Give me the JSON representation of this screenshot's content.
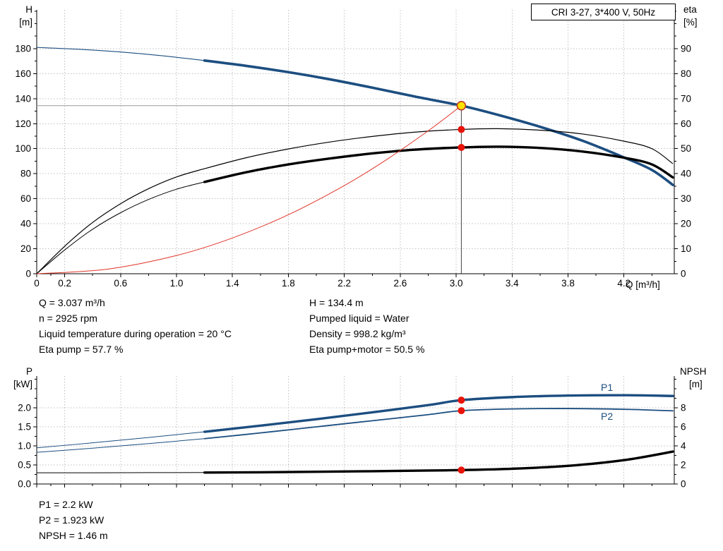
{
  "colors": {
    "curve_blue": "#1c4e80",
    "curve_black": "#000000",
    "system_red": "#e03528",
    "marker": "#e81309",
    "duty_fill": "#ffe200",
    "duty_stroke": "#c0392b",
    "grid": "#c0c0c0",
    "axis": "#000000",
    "crosshair_v": "#444444",
    "crosshair_h": "#999999"
  },
  "operating_point": {
    "left": [
      "Q = 3.037 m³/h",
      "n = 2925 rpm",
      "Liquid temperature during operation = 20 °C",
      "Eta pump = 57.7 %"
    ],
    "right": [
      "H = 134.4 m",
      "Pumped liquid = Water",
      "Density = 998.2 kg/m³",
      "Eta pump+motor = 50.5 %"
    ]
  },
  "power_info": [
    "P1 = 2.2 kW",
    "P2 = 1.923 kW",
    "NPSH = 1.46 m"
  ],
  "chart_data": [
    {
      "type": "line",
      "title": "CRI 3-27, 3*400 V, 50Hz",
      "xlabel": "Q [m³/h]",
      "ylabel_left_lines": [
        "H",
        "[m]"
      ],
      "ylabel_right_lines": [
        "eta",
        "[%]"
      ],
      "xlim": [
        0,
        4.56
      ],
      "ylim_left": [
        0,
        211
      ],
      "ylim_right": [
        0,
        105.5
      ],
      "grid": true,
      "legend_position": "none",
      "x_ticks": [
        0,
        0.2,
        0.6,
        1.0,
        1.4,
        1.8,
        2.2,
        2.6,
        3.0,
        3.4,
        3.8,
        4.2
      ],
      "x_tick_labels": [
        "0",
        "0.2",
        "0.6",
        "1.0",
        "1.4",
        "1.8",
        "2.2",
        "2.6",
        "3.0",
        "3.4",
        "3.8",
        "4.2"
      ],
      "y_ticks_left": [
        0,
        20,
        40,
        60,
        80,
        100,
        120,
        140,
        160,
        180
      ],
      "y_tick_labels_left": [
        "0",
        "20",
        "40",
        "60",
        "80",
        "100",
        "120",
        "140",
        "160",
        "180"
      ],
      "y_ticks_right": [
        0,
        10,
        20,
        30,
        40,
        50,
        60,
        70,
        80,
        90
      ],
      "y_tick_labels_right": [
        "0",
        "10",
        "20",
        "30",
        "40",
        "50",
        "60",
        "70",
        "80",
        "90"
      ],
      "series": [
        {
          "name": "head-curve",
          "label": "",
          "axis": "left",
          "color": "#1c4e80",
          "width": 1.1,
          "thick_from": 1.2,
          "thick_width": 3.6,
          "points": [
            [
              0,
              181
            ],
            [
              0.3,
              179.5
            ],
            [
              0.6,
              177.3
            ],
            [
              0.9,
              174.3
            ],
            [
              1.2,
              170.5
            ],
            [
              1.5,
              166.2
            ],
            [
              1.8,
              161.2
            ],
            [
              2.1,
              155.4
            ],
            [
              2.4,
              148.8
            ],
            [
              2.7,
              141.8
            ],
            [
              3.037,
              134.4
            ],
            [
              3.3,
              127
            ],
            [
              3.6,
              117.5
            ],
            [
              3.9,
              106.5
            ],
            [
              4.2,
              93
            ],
            [
              4.4,
              83
            ],
            [
              4.55,
              71
            ]
          ]
        },
        {
          "name": "eta-pump-curve",
          "label": "",
          "axis": "right",
          "color": "#000000",
          "width": 1.2,
          "points": [
            [
              0,
              0
            ],
            [
              0.2,
              11
            ],
            [
              0.4,
              20.5
            ],
            [
              0.6,
              28
            ],
            [
              0.8,
              34
            ],
            [
              1.0,
              38.7
            ],
            [
              1.2,
              42
            ],
            [
              1.5,
              46.4
            ],
            [
              1.8,
              49.9
            ],
            [
              2.1,
              52.7
            ],
            [
              2.4,
              54.9
            ],
            [
              2.7,
              56.6
            ],
            [
              3.037,
              57.7
            ],
            [
              3.3,
              58
            ],
            [
              3.6,
              57.4
            ],
            [
              3.9,
              55.9
            ],
            [
              4.2,
              53
            ],
            [
              4.4,
              50
            ],
            [
              4.55,
              44
            ]
          ]
        },
        {
          "name": "eta-pump-motor-curve",
          "label": "",
          "axis": "right",
          "color": "#000000",
          "width": 1,
          "thick_from": 1.2,
          "thick_width": 3.4,
          "points": [
            [
              0,
              0
            ],
            [
              0.2,
              9.5
            ],
            [
              0.4,
              17.8
            ],
            [
              0.6,
              24.4
            ],
            [
              0.8,
              29.7
            ],
            [
              1.0,
              33.8
            ],
            [
              1.2,
              36.7
            ],
            [
              1.5,
              40.6
            ],
            [
              1.8,
              43.7
            ],
            [
              2.1,
              46.1
            ],
            [
              2.4,
              48.1
            ],
            [
              2.7,
              49.6
            ],
            [
              3.037,
              50.5
            ],
            [
              3.3,
              50.8
            ],
            [
              3.6,
              50.3
            ],
            [
              3.9,
              48.9
            ],
            [
              4.2,
              46.4
            ],
            [
              4.4,
              43.7
            ],
            [
              4.55,
              38.5
            ]
          ]
        },
        {
          "name": "system-curve",
          "label": "",
          "axis": "left",
          "color": "#e03528",
          "width": 1,
          "points": [
            [
              0,
              0
            ],
            [
              0.5,
              3.6
            ],
            [
              1.0,
              14.6
            ],
            [
              1.4,
              28.6
            ],
            [
              1.8,
              47.2
            ],
            [
              2.2,
              70.5
            ],
            [
              2.5,
              91.1
            ],
            [
              2.8,
              114.3
            ],
            [
              3.037,
              134.4
            ]
          ]
        }
      ],
      "duty_point": {
        "q": 3.037,
        "h": 134.4
      },
      "markers": [
        {
          "name": "eta-pump-point",
          "q": 3.037,
          "value": 57.7,
          "axis": "right"
        },
        {
          "name": "eta-pump-motor-point",
          "q": 3.037,
          "value": 50.5,
          "axis": "right"
        }
      ]
    },
    {
      "type": "line",
      "title": "",
      "xlabel": "",
      "ylabel_left_lines": [
        "P",
        "[kW]"
      ],
      "ylabel_right_lines": [
        "NPSH",
        "[m]"
      ],
      "xlim": [
        0,
        4.56
      ],
      "ylim_left": [
        0,
        2.833
      ],
      "ylim_right": [
        0,
        11.33
      ],
      "grid": true,
      "legend_position": "right-inline",
      "x_ticks": [
        0,
        0.2,
        0.6,
        1.0,
        1.4,
        1.8,
        2.2,
        2.6,
        3.0,
        3.4,
        3.8,
        4.2
      ],
      "x_tick_labels": null,
      "y_ticks_left": [
        0,
        0.5,
        1.0,
        1.5,
        2.0
      ],
      "y_tick_labels_left": [
        "0.0",
        "0.5",
        "1.0",
        "1.5",
        "2.0"
      ],
      "y_ticks_right": [
        0,
        2,
        4,
        6,
        8
      ],
      "y_tick_labels_right": [
        "0",
        "2",
        "4",
        "6",
        "8"
      ],
      "series": [
        {
          "name": "p1-curve",
          "label": "P1",
          "axis": "left",
          "color": "#1c4e80",
          "width": 1,
          "thick_from": 1.2,
          "thick_width": 3.4,
          "points": [
            [
              0,
              0.95
            ],
            [
              0.4,
              1.08
            ],
            [
              0.8,
              1.22
            ],
            [
              1.2,
              1.37
            ],
            [
              1.6,
              1.53
            ],
            [
              2.0,
              1.7
            ],
            [
              2.4,
              1.88
            ],
            [
              2.8,
              2.07
            ],
            [
              3.037,
              2.2
            ],
            [
              3.4,
              2.28
            ],
            [
              3.8,
              2.32
            ],
            [
              4.2,
              2.33
            ],
            [
              4.55,
              2.31
            ]
          ]
        },
        {
          "name": "p2-curve",
          "label": "P2",
          "axis": "left",
          "color": "#1c4e80",
          "width": 1,
          "thick_from": 1.2,
          "thick_width": 1.8,
          "points": [
            [
              0,
              0.83
            ],
            [
              0.4,
              0.94
            ],
            [
              0.8,
              1.06
            ],
            [
              1.2,
              1.19
            ],
            [
              1.6,
              1.34
            ],
            [
              2.0,
              1.5
            ],
            [
              2.4,
              1.66
            ],
            [
              2.8,
              1.82
            ],
            [
              3.037,
              1.923
            ],
            [
              3.4,
              1.97
            ],
            [
              3.8,
              1.98
            ],
            [
              4.2,
              1.96
            ],
            [
              4.55,
              1.92
            ]
          ]
        },
        {
          "name": "npsh-curve",
          "label": "",
          "axis": "right",
          "color": "#000000",
          "width": 1,
          "thick_from": 1.2,
          "thick_width": 3.4,
          "points": [
            [
              0,
              1.18
            ],
            [
              0.4,
              1.18
            ],
            [
              0.8,
              1.19
            ],
            [
              1.2,
              1.2
            ],
            [
              1.6,
              1.23
            ],
            [
              2.0,
              1.28
            ],
            [
              2.4,
              1.34
            ],
            [
              2.8,
              1.41
            ],
            [
              3.037,
              1.46
            ],
            [
              3.4,
              1.6
            ],
            [
              3.8,
              1.9
            ],
            [
              4.2,
              2.5
            ],
            [
              4.55,
              3.4
            ]
          ]
        }
      ],
      "markers": [
        {
          "name": "p1-point",
          "q": 3.037,
          "value": 2.2,
          "axis": "left"
        },
        {
          "name": "p2-point",
          "q": 3.037,
          "value": 1.923,
          "axis": "left"
        },
        {
          "name": "npsh-point",
          "q": 3.037,
          "value": 1.46,
          "axis": "right"
        }
      ]
    }
  ]
}
